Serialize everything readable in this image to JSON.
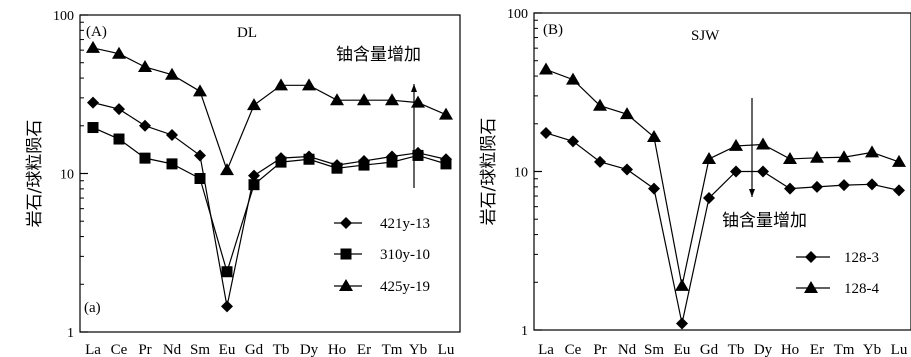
{
  "chart_data": [
    {
      "type": "line",
      "panel_label": "(A)",
      "site": "DL",
      "sub_label": "(a)",
      "ylabel": "岩石/球粒陨石",
      "yscale": "log",
      "ylim": [
        1,
        100
      ],
      "yticks": [
        "1",
        "10",
        "100"
      ],
      "categories": [
        "La",
        "Ce",
        "Pr",
        "Nd",
        "Sm",
        "Eu",
        "Gd",
        "Tb",
        "Dy",
        "Ho",
        "Er",
        "Tm",
        "Yb",
        "Lu"
      ],
      "annotation": "铀含量增加",
      "arrow_direction": "up",
      "series": [
        {
          "name": "421y-13",
          "marker": "diamond",
          "values": [
            28,
            25.5,
            20,
            17.5,
            13,
            1.45,
            9.7,
            12.5,
            12.8,
            11.3,
            12,
            12.8,
            13.5,
            12.3
          ]
        },
        {
          "name": "310y-10",
          "marker": "square",
          "values": [
            19.5,
            16.5,
            12.5,
            11.5,
            9.3,
            2.4,
            8.5,
            11.8,
            12.3,
            10.8,
            11.3,
            11.8,
            13,
            11.5
          ]
        },
        {
          "name": "425y-19",
          "marker": "triangle",
          "values": [
            62,
            57,
            47,
            42,
            33,
            10.5,
            27,
            36,
            36,
            29,
            29,
            29,
            28,
            23.5
          ]
        }
      ],
      "legend_position": "bottom-right"
    },
    {
      "type": "line",
      "panel_label": "(B)",
      "site": "SJW",
      "ylabel": "岩石/球粒陨石",
      "yscale": "log",
      "ylim": [
        1,
        100
      ],
      "yticks": [
        "1",
        "10",
        "100"
      ],
      "categories": [
        "La",
        "Ce",
        "Pr",
        "Nd",
        "Sm",
        "Eu",
        "Gd",
        "Tb",
        "Dy",
        "Ho",
        "Er",
        "Tm",
        "Yb",
        "Lu"
      ],
      "annotation": "铀含量增加",
      "arrow_direction": "down",
      "series": [
        {
          "name": "128-3",
          "marker": "diamond",
          "values": [
            17.5,
            15.5,
            11.5,
            10.3,
            7.8,
            1.1,
            6.8,
            10,
            10,
            7.8,
            8,
            8.2,
            8.3,
            7.6
          ]
        },
        {
          "name": "128-4",
          "marker": "triangle",
          "values": [
            44,
            38,
            26,
            23,
            16.5,
            1.9,
            12,
            14.5,
            14.8,
            12,
            12.2,
            12.3,
            13.2,
            11.5
          ]
        }
      ],
      "legend_position": "bottom-right"
    }
  ]
}
